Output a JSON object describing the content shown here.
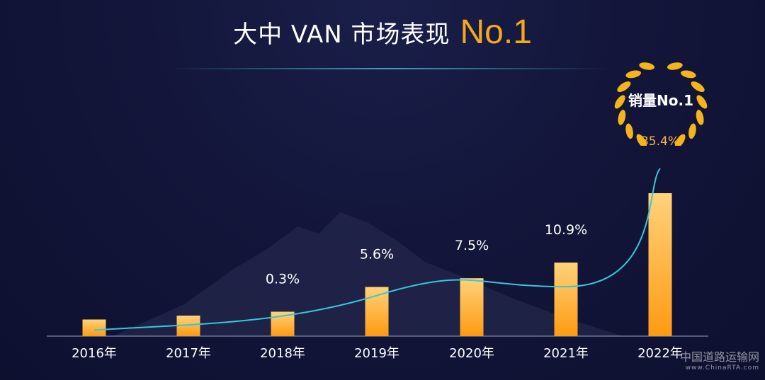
{
  "header": {
    "title": "大中 VAN 市场表现",
    "title_highlight": "No.1"
  },
  "badge": {
    "label": "销量No.1",
    "icon": "laurel-wreath-icon",
    "color": "#f4b41c"
  },
  "watermark": {
    "text": "中国道路运输网",
    "sub": "www.ChinaRTA.com"
  },
  "colors": {
    "bar_top": "#ffd27a",
    "bar_bottom": "#ff9a12",
    "trend_line": "#35c8d8",
    "label_white": "#ffffff",
    "label_gold": "#f4b44c"
  },
  "chart_data": {
    "type": "bar",
    "categories": [
      "2016年",
      "2017年",
      "2018年",
      "2019年",
      "2020年",
      "2021年",
      "2022年"
    ],
    "values": [
      0.1,
      0.2,
      0.3,
      5.6,
      7.5,
      10.9,
      35.4
    ],
    "data_labels": [
      "",
      "",
      "0.3%",
      "5.6%",
      "7.5%",
      "10.9%",
      "35.4%"
    ],
    "trend_line": true,
    "title": "",
    "xlabel": "",
    "ylabel": "",
    "grid": false,
    "legend": "none"
  }
}
